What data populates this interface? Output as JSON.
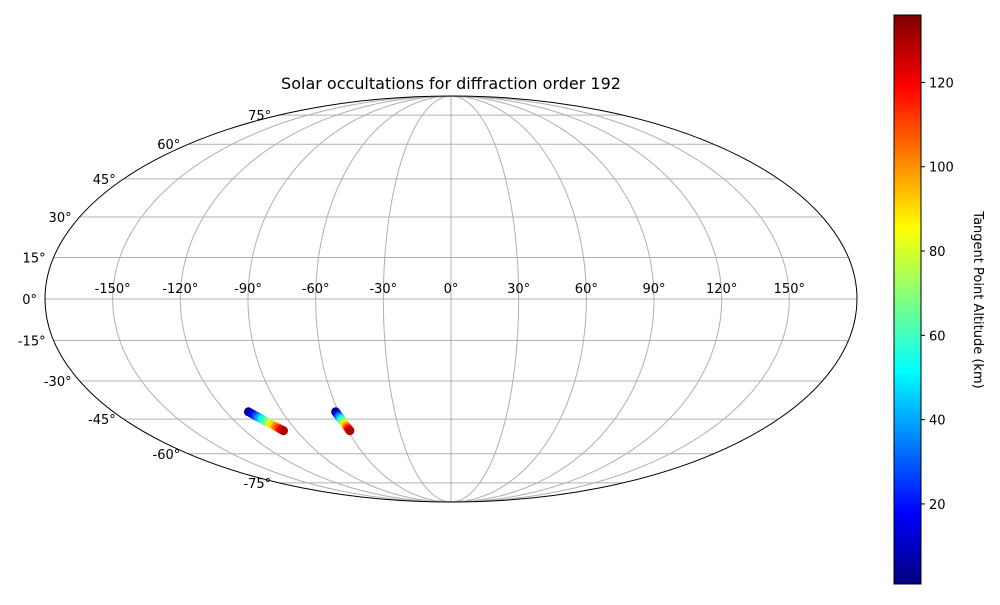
{
  "chart_data": {
    "type": "scatter",
    "projection": "mollweide",
    "title": "Solar occultations for diffraction order 192",
    "x_tick_labels": [
      "-150°",
      "-120°",
      "-90°",
      "-60°",
      "-30°",
      "0°",
      "30°",
      "60°",
      "90°",
      "120°",
      "150°"
    ],
    "y_tick_labels": [
      "-75°",
      "-60°",
      "-45°",
      "-30°",
      "-15°",
      "0°",
      "15°",
      "30°",
      "45°",
      "60°",
      "75°"
    ],
    "x_ticks": [
      -150,
      -120,
      -90,
      -60,
      -30,
      0,
      30,
      60,
      90,
      120,
      150
    ],
    "y_ticks": [
      -75,
      -60,
      -45,
      -30,
      -15,
      0,
      15,
      30,
      45,
      60,
      75
    ],
    "grid": true,
    "colorbar": {
      "label": "Tangent Point Altitude (km)",
      "colormap": "jet",
      "range": [
        1,
        136
      ],
      "ticks": [
        20,
        40,
        60,
        80,
        100,
        120
      ],
      "tick_labels": [
        "20",
        "40",
        "60",
        "80",
        "100",
        "120"
      ]
    },
    "series": [
      {
        "points": [
          {
            "lon": -108.0,
            "lat": -42.0,
            "alt": 1
          },
          {
            "lon": -107.2,
            "lat": -42.6,
            "alt": 10
          },
          {
            "lon": -106.4,
            "lat": -43.2,
            "alt": 20
          },
          {
            "lon": -105.6,
            "lat": -43.8,
            "alt": 30
          },
          {
            "lon": -104.8,
            "lat": -44.4,
            "alt": 40
          },
          {
            "lon": -104.0,
            "lat": -45.0,
            "alt": 50
          },
          {
            "lon": -103.2,
            "lat": -45.6,
            "alt": 60
          },
          {
            "lon": -102.4,
            "lat": -46.2,
            "alt": 70
          },
          {
            "lon": -101.6,
            "lat": -46.8,
            "alt": 80
          },
          {
            "lon": -100.8,
            "lat": -47.4,
            "alt": 90
          },
          {
            "lon": -100.0,
            "lat": -48.0,
            "alt": 100
          },
          {
            "lon": -99.2,
            "lat": -48.6,
            "alt": 110
          },
          {
            "lon": -98.4,
            "lat": -49.2,
            "alt": 120
          },
          {
            "lon": -97.6,
            "lat": -49.8,
            "alt": 130
          }
        ]
      },
      {
        "points": [
          {
            "lon": -61.5,
            "lat": -42.0,
            "alt": 1
          },
          {
            "lon": -61.3,
            "lat": -42.6,
            "alt": 10
          },
          {
            "lon": -61.1,
            "lat": -43.2,
            "alt": 20
          },
          {
            "lon": -60.9,
            "lat": -43.8,
            "alt": 30
          },
          {
            "lon": -60.7,
            "lat": -44.4,
            "alt": 40
          },
          {
            "lon": -60.5,
            "lat": -45.0,
            "alt": 50
          },
          {
            "lon": -60.3,
            "lat": -45.6,
            "alt": 60
          },
          {
            "lon": -60.1,
            "lat": -46.2,
            "alt": 70
          },
          {
            "lon": -59.9,
            "lat": -46.8,
            "alt": 80
          },
          {
            "lon": -59.7,
            "lat": -47.4,
            "alt": 90
          },
          {
            "lon": -59.5,
            "lat": -48.0,
            "alt": 100
          },
          {
            "lon": -59.3,
            "lat": -48.6,
            "alt": 110
          },
          {
            "lon": -59.1,
            "lat": -49.2,
            "alt": 120
          },
          {
            "lon": -58.9,
            "lat": -49.8,
            "alt": 130
          }
        ]
      }
    ]
  }
}
